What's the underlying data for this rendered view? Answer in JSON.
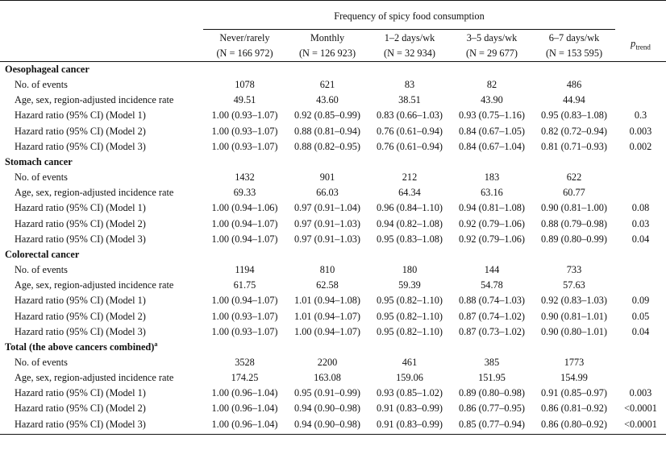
{
  "header": {
    "spanning_title": "Frequency of spicy food consumption",
    "columns": [
      {
        "name": "Never/rarely",
        "n": "(N = 166 972)"
      },
      {
        "name": "Monthly",
        "n": "(N = 126 923)"
      },
      {
        "name": "1–2 days/wk",
        "n": "(N = 32 934)"
      },
      {
        "name": "3–5 days/wk",
        "n": "(N = 29 677)"
      },
      {
        "name": "6–7 days/wk",
        "n": "(N = 153 595)"
      }
    ],
    "ptrend_p": "p",
    "ptrend_sub": "trend"
  },
  "sections": [
    {
      "title": "Oesophageal cancer",
      "title_sup": "",
      "rows": [
        {
          "label": "No. of events",
          "values": [
            "1078",
            "621",
            "83",
            "82",
            "486"
          ],
          "ptrend": ""
        },
        {
          "label": "Age, sex, region-adjusted incidence rate",
          "values": [
            "49.51",
            "43.60",
            "38.51",
            "43.90",
            "44.94"
          ],
          "ptrend": ""
        },
        {
          "label": "Hazard ratio (95% CI) (Model 1)",
          "values": [
            "1.00 (0.93–1.07)",
            "0.92 (0.85–0.99)",
            "0.83 (0.66–1.03)",
            "0.93 (0.75–1.16)",
            "0.95 (0.83–1.08)"
          ],
          "ptrend": "0.3"
        },
        {
          "label": "Hazard ratio (95% CI) (Model 2)",
          "values": [
            "1.00 (0.93–1.07)",
            "0.88 (0.81–0.94)",
            "0.76 (0.61–0.94)",
            "0.84 (0.67–1.05)",
            "0.82 (0.72–0.94)"
          ],
          "ptrend": "0.003"
        },
        {
          "label": "Hazard ratio (95% CI) (Model 3)",
          "values": [
            "1.00 (0.93–1.07)",
            "0.88 (0.82–0.95)",
            "0.76 (0.61–0.94)",
            "0.84 (0.67–1.04)",
            "0.81 (0.71–0.93)"
          ],
          "ptrend": "0.002"
        }
      ]
    },
    {
      "title": "Stomach cancer",
      "title_sup": "",
      "rows": [
        {
          "label": "No. of events",
          "values": [
            "1432",
            "901",
            "212",
            "183",
            "622"
          ],
          "ptrend": ""
        },
        {
          "label": "Age, sex, region-adjusted incidence rate",
          "values": [
            "69.33",
            "66.03",
            "64.34",
            "63.16",
            "60.77"
          ],
          "ptrend": ""
        },
        {
          "label": "Hazard ratio (95% CI) (Model 1)",
          "values": [
            "1.00 (0.94–1.06)",
            "0.97 (0.91–1.04)",
            "0.96 (0.84–1.10)",
            "0.94 (0.81–1.08)",
            "0.90 (0.81–1.00)"
          ],
          "ptrend": "0.08"
        },
        {
          "label": "Hazard ratio (95% CI) (Model 2)",
          "values": [
            "1.00 (0.94–1.07)",
            "0.97 (0.91–1.03)",
            "0.94 (0.82–1.08)",
            "0.92 (0.79–1.06)",
            "0.88 (0.79–0.98)"
          ],
          "ptrend": "0.03"
        },
        {
          "label": "Hazard ratio (95% CI) (Model 3)",
          "values": [
            "1.00 (0.94–1.07)",
            "0.97 (0.91–1.03)",
            "0.95 (0.83–1.08)",
            "0.92 (0.79–1.06)",
            "0.89 (0.80–0.99)"
          ],
          "ptrend": "0.04"
        }
      ]
    },
    {
      "title": "Colorectal cancer",
      "title_sup": "",
      "rows": [
        {
          "label": "No. of events",
          "values": [
            "1194",
            "810",
            "180",
            "144",
            "733"
          ],
          "ptrend": ""
        },
        {
          "label": "Age, sex, region-adjusted incidence rate",
          "values": [
            "61.75",
            "62.58",
            "59.39",
            "54.78",
            "57.63"
          ],
          "ptrend": ""
        },
        {
          "label": "Hazard ratio (95% CI) (Model 1)",
          "values": [
            "1.00 (0.94–1.07)",
            "1.01 (0.94–1.08)",
            "0.95 (0.82–1.10)",
            "0.88 (0.74–1.03)",
            "0.92 (0.83–1.03)"
          ],
          "ptrend": "0.09"
        },
        {
          "label": "Hazard ratio (95% CI) (Model 2)",
          "values": [
            "1.00 (0.93–1.07)",
            "1.01 (0.94–1.07)",
            "0.95 (0.82–1.10)",
            "0.87 (0.74–1.02)",
            "0.90 (0.81–1.01)"
          ],
          "ptrend": "0.05"
        },
        {
          "label": "Hazard ratio (95% CI) (Model 3)",
          "values": [
            "1.00 (0.93–1.07)",
            "1.00 (0.94–1.07)",
            "0.95 (0.82–1.10)",
            "0.87 (0.73–1.02)",
            "0.90 (0.80–1.01)"
          ],
          "ptrend": "0.04"
        }
      ]
    },
    {
      "title": "Total (the above cancers combined)",
      "title_sup": "a",
      "rows": [
        {
          "label": "No. of events",
          "values": [
            "3528",
            "2200",
            "461",
            "385",
            "1773"
          ],
          "ptrend": ""
        },
        {
          "label": "Age, sex, region-adjusted incidence rate",
          "values": [
            "174.25",
            "163.08",
            "159.06",
            "151.95",
            "154.99"
          ],
          "ptrend": ""
        },
        {
          "label": "Hazard ratio (95% CI) (Model 1)",
          "values": [
            "1.00 (0.96–1.04)",
            "0.95 (0.91–0.99)",
            "0.93 (0.85–1.02)",
            "0.89 (0.80–0.98)",
            "0.91 (0.85–0.97)"
          ],
          "ptrend": "0.003"
        },
        {
          "label": "Hazard ratio (95% CI) (Model 2)",
          "values": [
            "1.00 (0.96–1.04)",
            "0.94 (0.90–0.98)",
            "0.91 (0.83–0.99)",
            "0.86 (0.77–0.95)",
            "0.86 (0.81–0.92)"
          ],
          "ptrend": "<0.0001"
        },
        {
          "label": "Hazard ratio (95% CI) (Model 3)",
          "values": [
            "1.00 (0.96–1.04)",
            "0.94 (0.90–0.98)",
            "0.91 (0.83–0.99)",
            "0.85 (0.77–0.94)",
            "0.86 (0.80–0.92)"
          ],
          "ptrend": "<0.0001"
        }
      ]
    }
  ]
}
